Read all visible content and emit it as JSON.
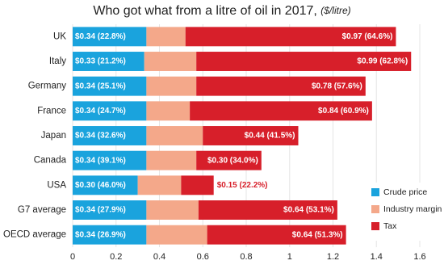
{
  "chart_data": {
    "type": "bar",
    "orientation": "horizontal",
    "stacked": true,
    "title": "Who got what from a litre of oil in 2017,",
    "unit": "($/litre)",
    "categories": [
      "UK",
      "Italy",
      "Germany",
      "France",
      "Japan",
      "Canada",
      "USA",
      "G7 average",
      "OECD average"
    ],
    "series": [
      {
        "name": "Crude price",
        "color": "#1aa3dd",
        "values": [
          0.34,
          0.33,
          0.34,
          0.34,
          0.34,
          0.34,
          0.3,
          0.34,
          0.34
        ],
        "value_labels": [
          "$0.34 (22.8%)",
          "$0.33 (21.2%)",
          "$0.34 (25.1%)",
          "$0.34 (24.7%)",
          "$0.34 (32.6%)",
          "$0.34 (39.1%)",
          "$0.30 (46.0%)",
          "$0.34 (27.9%)",
          "$0.34 (26.9%)"
        ]
      },
      {
        "name": "Industry margin",
        "color": "#f4a88a",
        "values": [
          0.18,
          0.24,
          0.23,
          0.2,
          0.26,
          0.23,
          0.2,
          0.24,
          0.28
        ]
      },
      {
        "name": "Tax",
        "color": "#d71f2a",
        "values": [
          0.97,
          0.99,
          0.78,
          0.84,
          0.44,
          0.3,
          0.15,
          0.64,
          0.64
        ],
        "value_labels": [
          "$0.97 (64.6%)",
          "$0.99 (62.8%)",
          "$0.78 (57.6%)",
          "$0.84 (60.9%)",
          "$0.44 (41.5%)",
          "$0.30 (34.0%)",
          "$0.15 (22.2%)",
          "$0.64 (53.1%)",
          "$0.64 (51.3%)"
        ]
      }
    ],
    "xlim": [
      0,
      1.6
    ],
    "xticks": [
      0,
      0.2,
      0.4,
      0.6,
      0.8,
      1,
      1.2,
      1.4,
      1.6
    ],
    "grid": true,
    "legend": "lower right"
  }
}
